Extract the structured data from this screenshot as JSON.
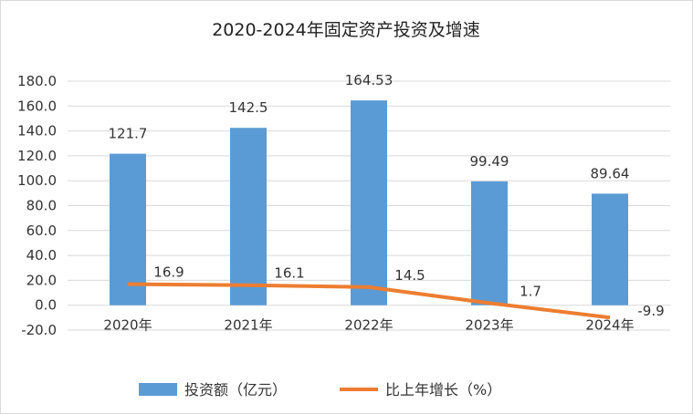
{
  "chart_data": {
    "type": "bar+line",
    "title": "2020-2024年固定资产投资及增速",
    "categories": [
      "2020年",
      "2021年",
      "2022年",
      "2023年",
      "2024年"
    ],
    "series": [
      {
        "name": "投资额（亿元）",
        "type": "bar",
        "values": [
          121.7,
          142.5,
          164.53,
          99.49,
          89.64
        ],
        "labels": [
          "121.7",
          "142.5",
          "164.53",
          "99.49",
          "89.64"
        ],
        "color": "#5b9bd5"
      },
      {
        "name": "比上年增长（%）",
        "type": "line",
        "values": [
          16.9,
          16.1,
          14.5,
          1.7,
          -9.9
        ],
        "labels": [
          "16.9",
          "16.1",
          "14.5",
          "1.7",
          "-9.9"
        ],
        "color": "#ed7d31"
      }
    ],
    "ylim": [
      -20,
      180
    ],
    "yticks": [
      "-20.0",
      "0.0",
      "20.0",
      "40.0",
      "60.0",
      "80.0",
      "100.0",
      "120.0",
      "140.0",
      "160.0",
      "180.0"
    ],
    "ytick_values": [
      -20,
      0,
      20,
      40,
      60,
      80,
      100,
      120,
      140,
      160,
      180
    ],
    "grid": true,
    "legend": "bottom"
  }
}
